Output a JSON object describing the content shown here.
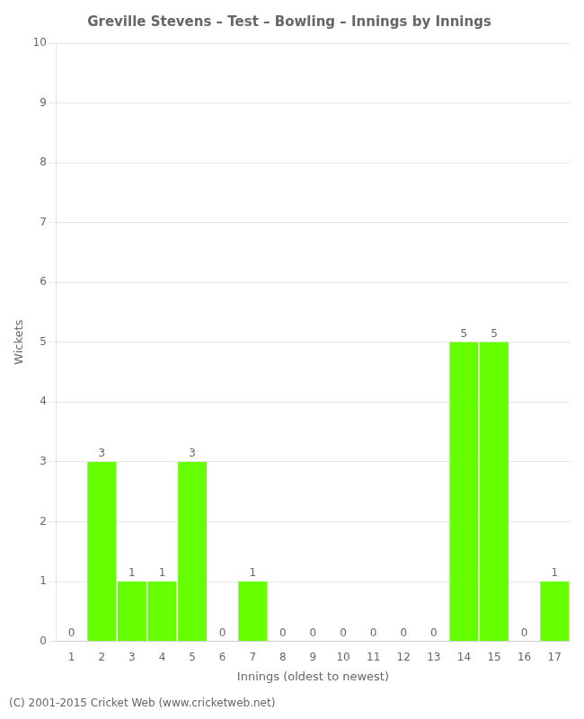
{
  "chart_data": {
    "type": "bar",
    "title": "Greville Stevens – Test – Bowling – Innings by Innings",
    "xlabel": "Innings (oldest to newest)",
    "ylabel": "Wickets",
    "footer": "(C) 2001-2015 Cricket Web (www.cricketweb.net)",
    "categories": [
      "1",
      "2",
      "3",
      "4",
      "5",
      "6",
      "7",
      "8",
      "9",
      "10",
      "11",
      "12",
      "13",
      "14",
      "15",
      "16",
      "17"
    ],
    "values": [
      0,
      3,
      1,
      1,
      3,
      0,
      1,
      0,
      0,
      0,
      0,
      0,
      0,
      5,
      5,
      0,
      1
    ],
    "color": "#66ff00",
    "ylim": [
      0,
      10
    ],
    "yticks": [
      0,
      1,
      2,
      3,
      4,
      5,
      6,
      7,
      8,
      9,
      10
    ],
    "grid": true,
    "data_labels": true
  }
}
